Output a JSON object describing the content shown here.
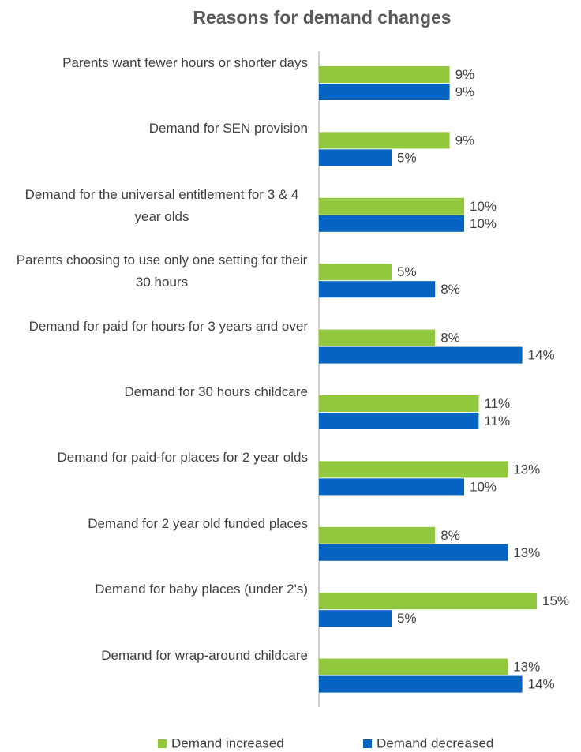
{
  "chart_data": {
    "type": "bar",
    "orientation": "horizontal",
    "title": "Reasons for demand changes",
    "categories": [
      "Parents want fewer hours or shorter days",
      "Demand for SEN provision",
      "Demand for the universal entitlement for 3 & 4 year olds",
      "Parents choosing to use only one setting for their 30 hours",
      "Demand for paid for hours for 3 years and over",
      "Demand for 30 hours childcare",
      "Demand for paid-for places for 2 year olds",
      "Demand for 2 year old funded places",
      "Demand for baby places (under 2's)",
      "Demand for wrap-around childcare"
    ],
    "series": [
      {
        "name": "Demand increased",
        "color": "#92c83e",
        "values": [
          9,
          9,
          10,
          5,
          8,
          11,
          13,
          8,
          15,
          13
        ],
        "value_labels": [
          "9%",
          "9%",
          "10%",
          "5%",
          "8%",
          "11%",
          "13%",
          "8%",
          "15%",
          "13%"
        ]
      },
      {
        "name": "Demand decreased",
        "color": "#0563c1",
        "values": [
          9,
          5,
          10,
          8,
          14,
          11,
          10,
          13,
          5,
          14
        ],
        "value_labels": [
          "9%",
          "5%",
          "10%",
          "8%",
          "14%",
          "11%",
          "10%",
          "13%",
          "5%",
          "14%"
        ]
      }
    ],
    "legend": "bottom"
  }
}
